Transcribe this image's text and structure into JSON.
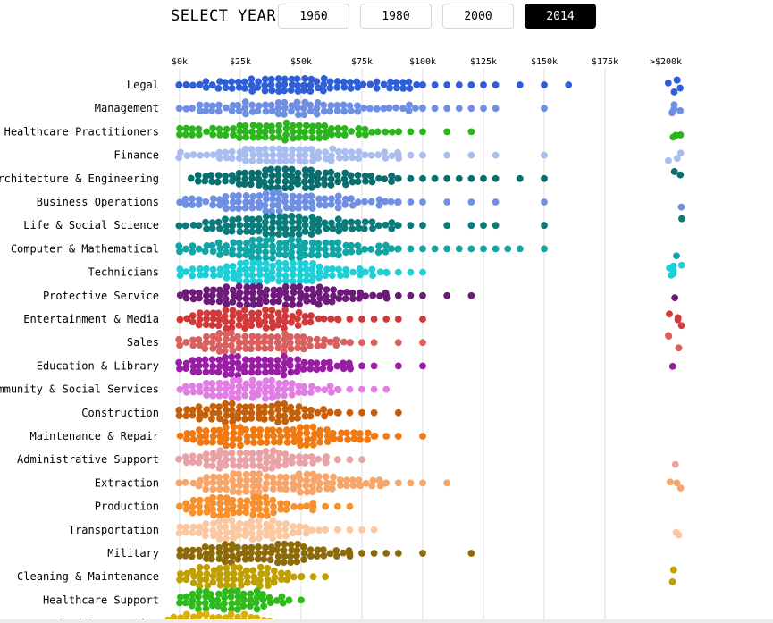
{
  "header": {
    "select_label": "SELECT YEAR",
    "years": [
      "1960",
      "1980",
      "2000",
      "2014"
    ],
    "active_year": "2014"
  },
  "chart_data": {
    "type": "scatter",
    "title": "",
    "xlabel": "",
    "ylabel": "",
    "x_unit": "thousands of dollars",
    "xlim": [
      0,
      175
    ],
    "x_ticks": [
      {
        "value": 0,
        "label": "$0k"
      },
      {
        "value": 25,
        "label": "$25k"
      },
      {
        "value": 50,
        "label": "$50k"
      },
      {
        "value": 75,
        "label": "$75k"
      },
      {
        "value": 100,
        "label": "$100k"
      },
      {
        "value": 125,
        "label": "$125k"
      },
      {
        "value": 150,
        "label": "$150k"
      },
      {
        "value": 175,
        "label": "$175k"
      },
      {
        "value": 200,
        "label": ">$200k"
      }
    ],
    "grid": true,
    "categories": [
      {
        "name": "Legal",
        "color": "#2f5fd8",
        "density": 0.5,
        "min": 0,
        "max": 160,
        "sparse": [
          100,
          105,
          110,
          115,
          120,
          125,
          130,
          140,
          150,
          160
        ],
        "top": 5
      },
      {
        "name": "Management",
        "color": "#6f8fe3",
        "density": 0.4,
        "min": 0,
        "max": 150,
        "sparse": [
          100,
          105,
          110,
          115,
          120,
          125,
          130,
          150
        ],
        "top": 5
      },
      {
        "name": "Healthcare Practitioners",
        "color": "#2db51e",
        "density": 0.6,
        "min": 0,
        "max": 120,
        "sparse": [
          90,
          95,
          100,
          110,
          120
        ],
        "top": 3
      },
      {
        "name": "Finance",
        "color": "#a9bdf0",
        "density": 0.5,
        "min": 0,
        "max": 150,
        "sparse": [
          90,
          95,
          100,
          110,
          120,
          130,
          150
        ],
        "top": 3
      },
      {
        "name": "Architecture & Engineering",
        "color": "#0a6e6e",
        "density": 0.7,
        "min": 5,
        "max": 150,
        "sparse": [
          90,
          95,
          100,
          105,
          110,
          115,
          120,
          125,
          130,
          140,
          150
        ],
        "top": 2
      },
      {
        "name": "Business Operations",
        "color": "#6f8fe3",
        "density": 0.6,
        "min": 0,
        "max": 150,
        "sparse": [
          90,
          95,
          100,
          110,
          120,
          130,
          150
        ],
        "top": 1
      },
      {
        "name": "Life & Social Science",
        "color": "#0a7b7b",
        "density": 0.7,
        "min": 0,
        "max": 150,
        "sparse": [
          90,
          95,
          100,
          110,
          120,
          125,
          130,
          150
        ],
        "top": 1
      },
      {
        "name": "Computer & Mathematical",
        "color": "#11a5a5",
        "density": 0.7,
        "min": 0,
        "max": 150,
        "sparse": [
          90,
          95,
          100,
          105,
          110,
          115,
          120,
          125,
          130,
          135,
          140,
          150
        ],
        "top": 1
      },
      {
        "name": "Technicians",
        "color": "#1dcfd6",
        "density": 0.8,
        "min": 0,
        "max": 100,
        "sparse": [
          85,
          90,
          95,
          100
        ],
        "top": 6
      },
      {
        "name": "Protective Service",
        "color": "#6e1a7a",
        "density": 0.9,
        "min": 0,
        "max": 120,
        "sparse": [
          85,
          90,
          95,
          100,
          110,
          120
        ],
        "top": 1
      },
      {
        "name": "Entertainment & Media",
        "color": "#d23a3a",
        "density": 0.9,
        "min": 0,
        "max": 100,
        "sparse": [
          65,
          70,
          75,
          80,
          85,
          90,
          100
        ],
        "top": 4
      },
      {
        "name": "Sales",
        "color": "#da5f5f",
        "density": 1.0,
        "min": 0,
        "max": 100,
        "sparse": [
          70,
          75,
          80,
          90,
          100
        ],
        "top": 3
      },
      {
        "name": "Education & Library",
        "color": "#9a1ea5",
        "density": 1.0,
        "min": 0,
        "max": 100,
        "sparse": [
          70,
          75,
          80,
          90,
          100
        ],
        "top": 1
      },
      {
        "name": "Community & Social Services",
        "color": "#e07ee3",
        "density": 0.8,
        "min": 0,
        "max": 85,
        "sparse": [
          65,
          70,
          75,
          80,
          85
        ],
        "top": 0
      },
      {
        "name": "Construction",
        "color": "#c65f0a",
        "density": 1.0,
        "min": 0,
        "max": 90,
        "sparse": [
          65,
          70,
          75,
          80,
          90
        ],
        "top": 0
      },
      {
        "name": "Maintenance & Repair",
        "color": "#f07a10",
        "density": 1.0,
        "min": 0,
        "max": 100,
        "sparse": [
          80,
          85,
          90,
          100
        ],
        "top": 0
      },
      {
        "name": "Administrative Support",
        "color": "#e9a3a6",
        "density": 1.0,
        "min": 0,
        "max": 75,
        "sparse": [
          60,
          65,
          70,
          75
        ],
        "top": 1
      },
      {
        "name": "Extraction",
        "color": "#f8a56a",
        "density": 1.0,
        "min": 0,
        "max": 110,
        "sparse": [
          85,
          90,
          95,
          100,
          110
        ],
        "top": 3
      },
      {
        "name": "Production",
        "color": "#f8902e",
        "density": 1.0,
        "min": 0,
        "max": 70,
        "sparse": [
          55,
          60,
          65,
          70
        ],
        "top": 0
      },
      {
        "name": "Transportation",
        "color": "#fbc8a2",
        "density": 1.0,
        "min": 0,
        "max": 80,
        "sparse": [
          60,
          65,
          70,
          75,
          80
        ],
        "top": 2
      },
      {
        "name": "Military",
        "color": "#8e6b0a",
        "density": 1.0,
        "min": 0,
        "max": 120,
        "sparse": [
          70,
          75,
          80,
          85,
          90,
          100,
          120
        ],
        "top": 0
      },
      {
        "name": "Cleaning & Maintenance",
        "color": "#c0a000",
        "density": 1.3,
        "min": 0,
        "max": 60,
        "sparse": [
          50,
          55,
          60
        ],
        "top": 2
      },
      {
        "name": "Healthcare Support",
        "color": "#2dbb1a",
        "density": 1.3,
        "min": 0,
        "max": 50,
        "sparse": [
          45,
          50
        ],
        "top": 0
      },
      {
        "name": "Food Preparation",
        "color": "#d7b000",
        "density": 1.5,
        "min": -5,
        "max": 45,
        "sparse": [
          40,
          45
        ],
        "top": 0
      }
    ]
  }
}
